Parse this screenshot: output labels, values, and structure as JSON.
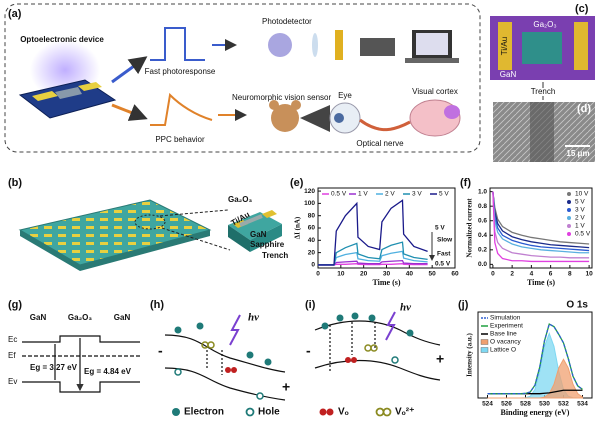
{
  "panel_labels": [
    "(a)",
    "(b)",
    "(c)",
    "(d)",
    "(e)",
    "(f)",
    "(g)",
    "(h)",
    "(i)",
    "(j)"
  ],
  "panel_a": {
    "device": "Optoelectronic device",
    "fast": "Fast photoresponse",
    "photodetector": "Photodetector",
    "ppc": "PPC behavior",
    "neuro": "Neuromorphic vision sensor",
    "eye": "Eye",
    "cortex": "Visual cortex",
    "nerve": "Optical nerve"
  },
  "panel_c": {
    "tiau": "Ti/Au",
    "ga2o3": "Ga₂O₃",
    "gan": "GaN",
    "trench": "Trench"
  },
  "panel_d": {
    "scale": "15 μm"
  },
  "panel_b": {
    "ga2o3": "Ga₂O₃",
    "tiau": "Ti/Au",
    "gan": "GaN",
    "sapphire": "Sapphire",
    "trench": "Trench"
  },
  "panel_g": {
    "gan_left": "GaN",
    "ga2o3": "Ga₂O₃",
    "gan_right": "GaN",
    "ec": "Ec",
    "ef": "Ef",
    "ev": "Ev",
    "eg_gan": "Eg = 3.27 eV",
    "eg_ga2o3": "Eg = 4.84 eV"
  },
  "panel_h": {
    "hv": "hv",
    "minus": "-",
    "plus": "+"
  },
  "panel_i": {
    "hv": "hv",
    "minus": "-",
    "plus": "+"
  },
  "legend_hi": {
    "electron": "Electron",
    "hole": "Hole",
    "vo": "Vₒ",
    "vo2": "Vₒ²⁺"
  },
  "chart_data": [
    {
      "type": "line",
      "xlabel": "Time (s)",
      "ylabel": "ΔI (nA)",
      "x": [
        0,
        7,
        8,
        12,
        17,
        17.5,
        22,
        27,
        28,
        32,
        37,
        37.5,
        42,
        48
      ],
      "series": [
        {
          "name": "0.5 V",
          "color": "#e040e0",
          "values": [
            0,
            0,
            1,
            1,
            2,
            1,
            0.5,
            0.5,
            1,
            1,
            2,
            1,
            0.5,
            0.5
          ]
        },
        {
          "name": "1 V",
          "color": "#9b30d0",
          "values": [
            0,
            0,
            4,
            5,
            6,
            3,
            2,
            2,
            5,
            6,
            7,
            3,
            2,
            2
          ]
        },
        {
          "name": "2 V",
          "color": "#4fb0e0",
          "values": [
            0,
            0,
            12,
            17,
            20,
            10,
            7,
            6,
            15,
            19,
            22,
            11,
            7,
            5
          ]
        },
        {
          "name": "3 V",
          "color": "#1f8fb0",
          "values": [
            0,
            0,
            20,
            28,
            35,
            18,
            12,
            10,
            25,
            32,
            37,
            18,
            12,
            9
          ]
        },
        {
          "name": "5 V",
          "color": "#1a1a8a",
          "values": [
            0,
            0,
            55,
            80,
            100,
            45,
            30,
            25,
            70,
            92,
            105,
            50,
            30,
            22
          ]
        }
      ],
      "annotations": [
        "5 V",
        "Slow",
        "Fast",
        "0.5 V"
      ],
      "xlim": [
        0,
        60
      ],
      "xticks": [
        0,
        10,
        20,
        30,
        40,
        50,
        60
      ],
      "ylim": [
        -5,
        125
      ],
      "yticks": [
        0,
        20,
        40,
        60,
        80,
        100,
        120
      ]
    },
    {
      "type": "line",
      "xlabel": "Time (s)",
      "ylabel": "Normalized current",
      "x": [
        0,
        0.2,
        0.5,
        1,
        2,
        3,
        4,
        5,
        6,
        7,
        8,
        9,
        10
      ],
      "series": [
        {
          "name": "10 V",
          "color": "#777777",
          "values": [
            1.0,
            0.78,
            0.62,
            0.52,
            0.44,
            0.4,
            0.37,
            0.35,
            0.33,
            0.31,
            0.3,
            0.29,
            0.28
          ]
        },
        {
          "name": "5 V",
          "color": "#1a2a8a",
          "values": [
            1.0,
            0.72,
            0.56,
            0.46,
            0.38,
            0.34,
            0.31,
            0.29,
            0.27,
            0.26,
            0.25,
            0.24,
            0.23
          ]
        },
        {
          "name": "3 V",
          "color": "#2a5ad0",
          "values": [
            1.0,
            0.66,
            0.5,
            0.4,
            0.33,
            0.29,
            0.26,
            0.24,
            0.23,
            0.22,
            0.21,
            0.2,
            0.19
          ]
        },
        {
          "name": "2 V",
          "color": "#5ab0e0",
          "values": [
            1.0,
            0.6,
            0.44,
            0.35,
            0.28,
            0.24,
            0.22,
            0.2,
            0.19,
            0.18,
            0.17,
            0.16,
            0.16
          ]
        },
        {
          "name": "1 V",
          "color": "#c080d0",
          "values": [
            1.0,
            0.45,
            0.3,
            0.22,
            0.16,
            0.14,
            0.12,
            0.11,
            0.1,
            0.1,
            0.09,
            0.09,
            0.09
          ]
        },
        {
          "name": "0.5 V",
          "color": "#e040e0",
          "values": [
            1.0,
            0.3,
            0.15,
            0.08,
            0.05,
            0.05,
            0.04,
            0.04,
            0.04,
            0.04,
            0.04,
            0.04,
            0.04
          ]
        }
      ],
      "xlim": [
        -0.3,
        10.3
      ],
      "xticks": [
        0,
        2,
        4,
        6,
        8,
        10
      ],
      "ylim": [
        -0.05,
        1.05
      ],
      "yticks": [
        {
          "value": 0,
          "label": "0.0"
        },
        0.2,
        0.4,
        0.6,
        0.8,
        {
          "value": 1,
          "label": "1.0"
        }
      ]
    },
    {
      "type": "line",
      "title": "O 1s",
      "xlabel": "Binding energy (eV)",
      "ylabel": "Intensity (a.u.)",
      "x": [
        524,
        524.5,
        525,
        525.5,
        526,
        526.5,
        527,
        527.5,
        528,
        528.5,
        529,
        529.5,
        530,
        530.5,
        531,
        531.5,
        532,
        532.5,
        533,
        533.5,
        534
      ],
      "series": [
        {
          "name": "Lattice O",
          "color": "#7fd8f2",
          "fill": true,
          "values": [
            0,
            0,
            0,
            0,
            0,
            0,
            0,
            0,
            0.003,
            0.02,
            0.1,
            0.31,
            0.6,
            0.75,
            0.6,
            0.31,
            0.1,
            0.02,
            0.003,
            0,
            0
          ]
        },
        {
          "name": "O vacancy",
          "color": "#f0a070",
          "fill": true,
          "values": [
            0,
            0,
            0,
            0,
            0,
            0,
            0,
            0,
            0,
            0,
            0,
            0,
            0.01,
            0.05,
            0.16,
            0.35,
            0.45,
            0.35,
            0.16,
            0.05,
            0.01
          ]
        },
        {
          "name": "Base line",
          "color": "#000000",
          "values": [
            0.05,
            0.05,
            0.05,
            0.05,
            0.05,
            0.05,
            0.05,
            0.05,
            0.05,
            0.05,
            0.05,
            0.05,
            0.055,
            0.06,
            0.07,
            0.08,
            0.09,
            0.09,
            0.09,
            0.09,
            0.09
          ]
        },
        {
          "name": "Experiment",
          "color": "#20a040",
          "values": [
            0.05,
            0.05,
            0.05,
            0.05,
            0.05,
            0.05,
            0.05,
            0.05,
            0.053,
            0.07,
            0.15,
            0.36,
            0.665,
            0.86,
            0.83,
            0.74,
            0.64,
            0.46,
            0.253,
            0.14,
            0.1
          ]
        },
        {
          "name": "Simulation",
          "color": "#3060d0",
          "dash": true,
          "values": [
            0.05,
            0.05,
            0.05,
            0.05,
            0.05,
            0.05,
            0.05,
            0.05,
            0.053,
            0.07,
            0.15,
            0.36,
            0.665,
            0.86,
            0.83,
            0.74,
            0.64,
            0.46,
            0.253,
            0.14,
            0.1
          ]
        }
      ],
      "xlim": [
        523,
        535
      ],
      "xticks": [
        524,
        526,
        528,
        530,
        532,
        534
      ],
      "ylim": [
        0,
        1
      ]
    }
  ]
}
